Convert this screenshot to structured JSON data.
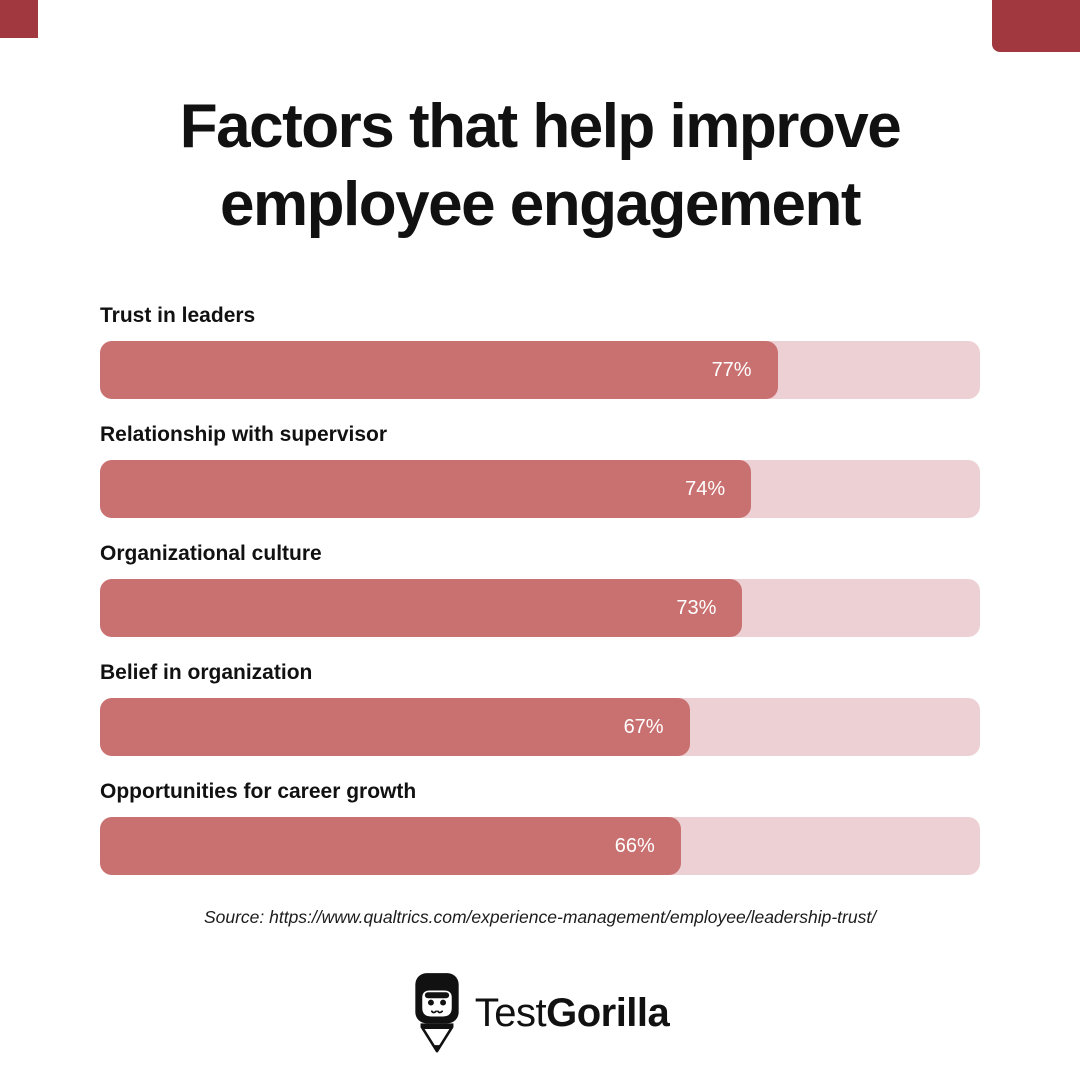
{
  "decor": {
    "corner_color": "#a2383f"
  },
  "chart_data": {
    "type": "bar",
    "title": "Factors that help improve employee engagement",
    "categories": [
      "Trust in leaders",
      "Relationship with supervisor",
      "Organizational culture",
      "Belief in organization",
      "Opportunities for career growth"
    ],
    "values": [
      77,
      74,
      73,
      67,
      66
    ],
    "value_suffix": "%",
    "xlim": [
      0,
      100
    ],
    "orientation": "horizontal",
    "grid": false,
    "legend": "none",
    "bar_color": "#c97170",
    "track_color": "#ecd0d3",
    "value_label_color": "#ffffff"
  },
  "source": {
    "text": "Source: https://www.qualtrics.com/experience-management/employee/leadership-trust/"
  },
  "logo": {
    "icon": "gorilla-pencil-icon",
    "brand_regular": "Test",
    "brand_bold": "Gorilla"
  }
}
